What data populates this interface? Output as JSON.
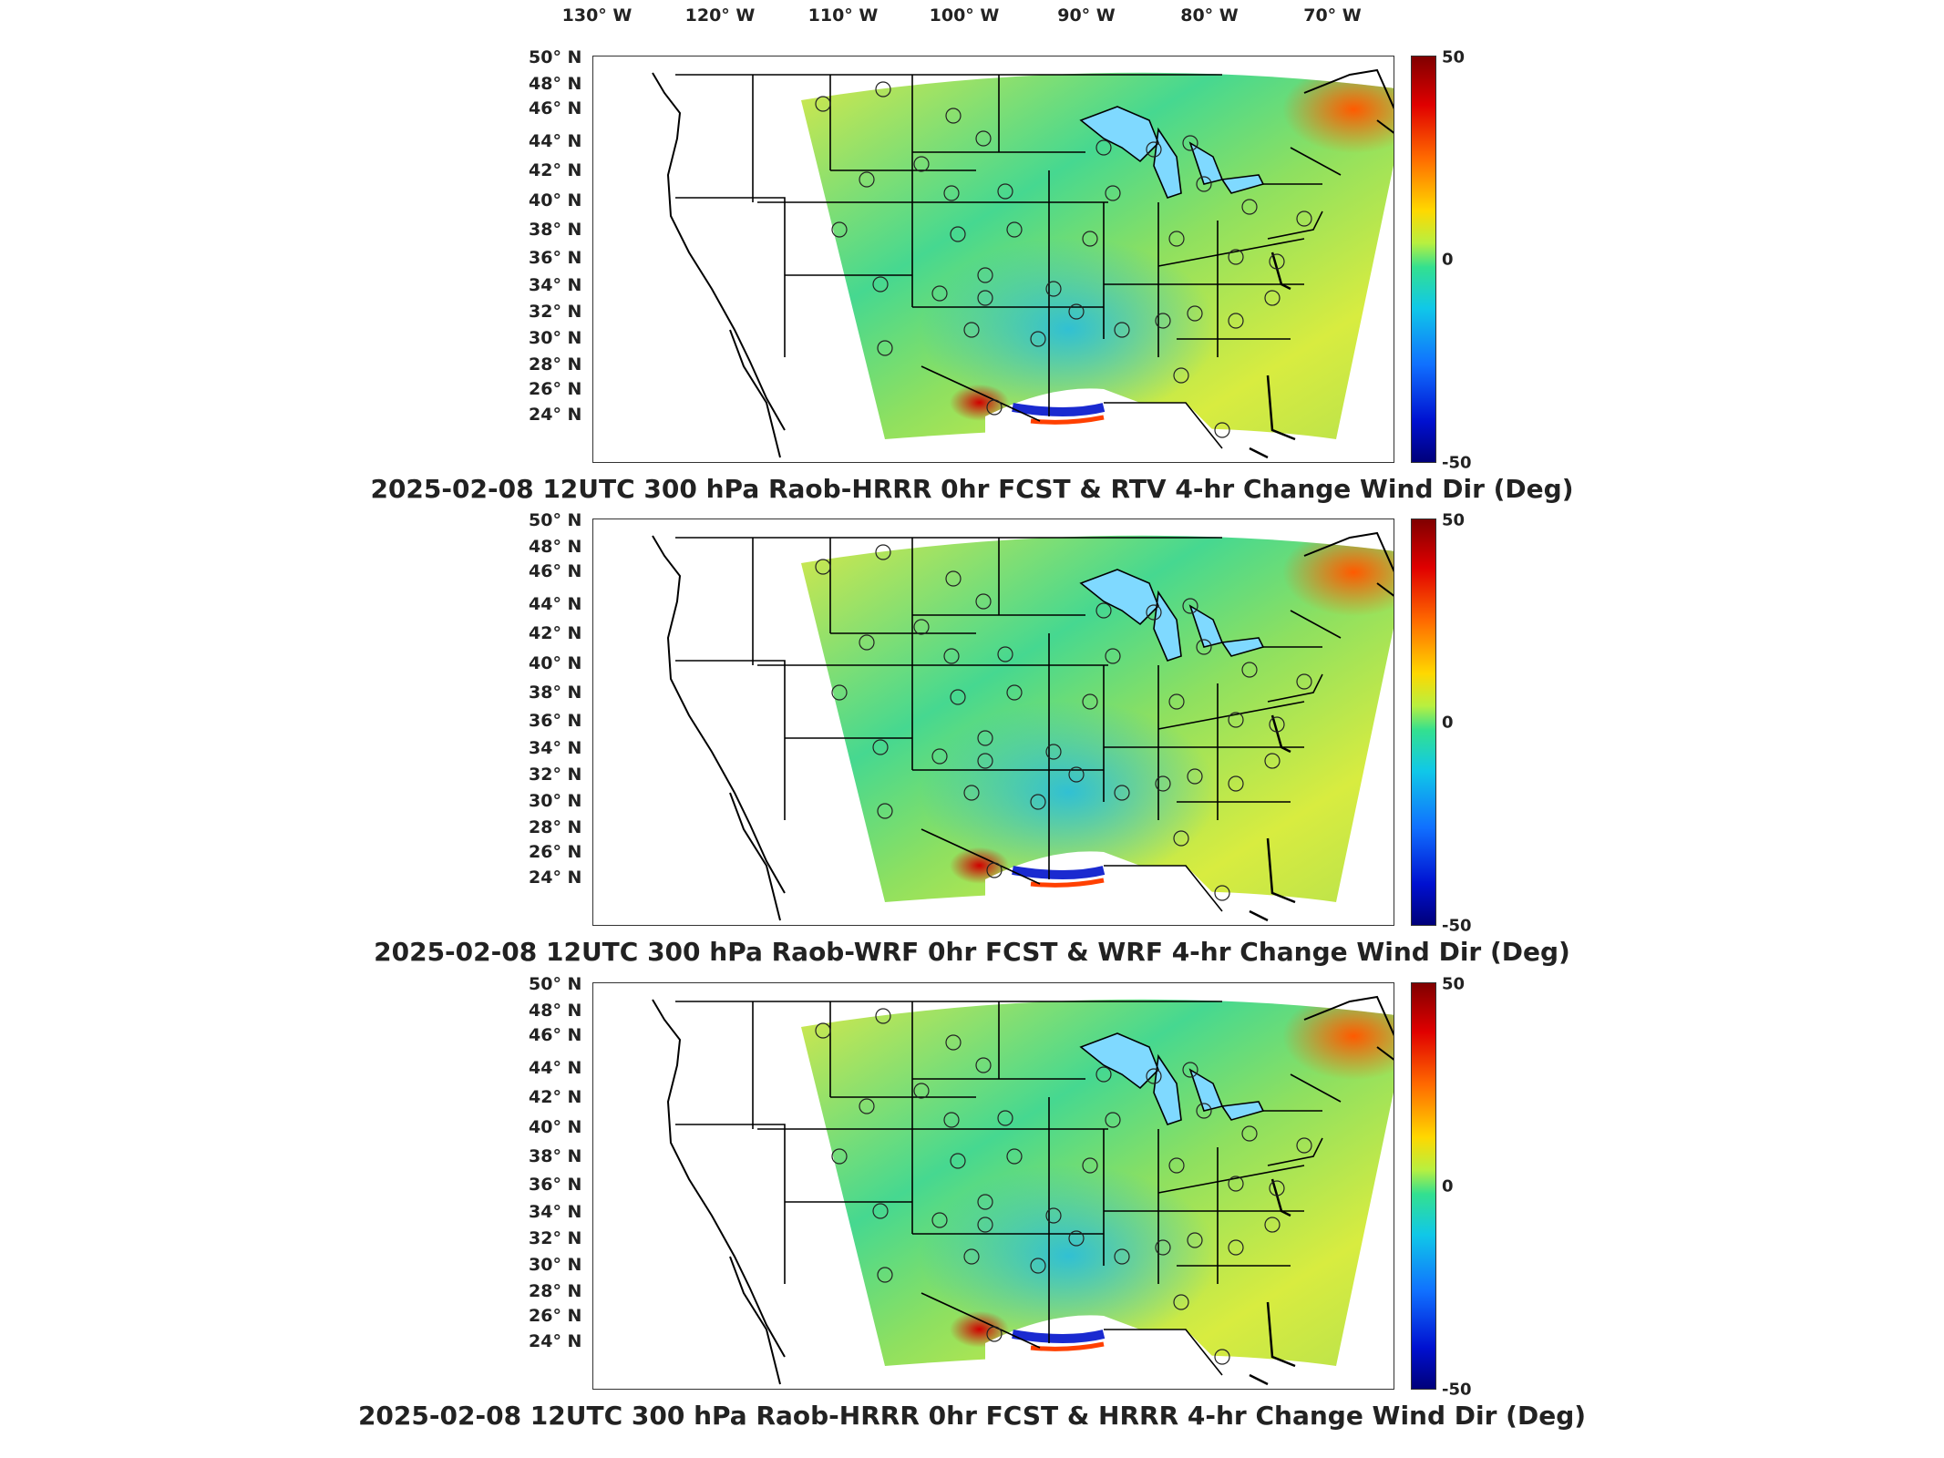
{
  "longitude_labels": [
    "130° W",
    "120° W",
    "110° W",
    "100° W",
    "90° W",
    "80° W",
    "70° W"
  ],
  "latitude_labels": [
    "50° N",
    "48° N",
    "46° N",
    "44° N",
    "42° N",
    "40° N",
    "38° N",
    "36° N",
    "34° N",
    "32° N",
    "30° N",
    "28° N",
    "26° N",
    "24° N"
  ],
  "colorbar": {
    "max_label": "50",
    "mid_label": "0",
    "min_label": "-50",
    "colors": [
      "#800000",
      "#e00000",
      "#ff6a00",
      "#ffd800",
      "#33e090",
      "#10c8e8",
      "#1070ff",
      "#00007a"
    ]
  },
  "panels": [
    {
      "title": "2025-02-08 12UTC 300 hPa Raob-HRRR 0hr FCST & RTV 4-hr Change Wind Dir (Deg)"
    },
    {
      "title": "2025-02-08 12UTC 300 hPa Raob-WRF 0hr FCST & WRF 4-hr Change Wind Dir (Deg)"
    },
    {
      "title": "2025-02-08 12UTC 300 hPa Raob-HRRR 0hr FCST & HRRR 4-hr Change Wind Dir (Deg)"
    }
  ]
}
